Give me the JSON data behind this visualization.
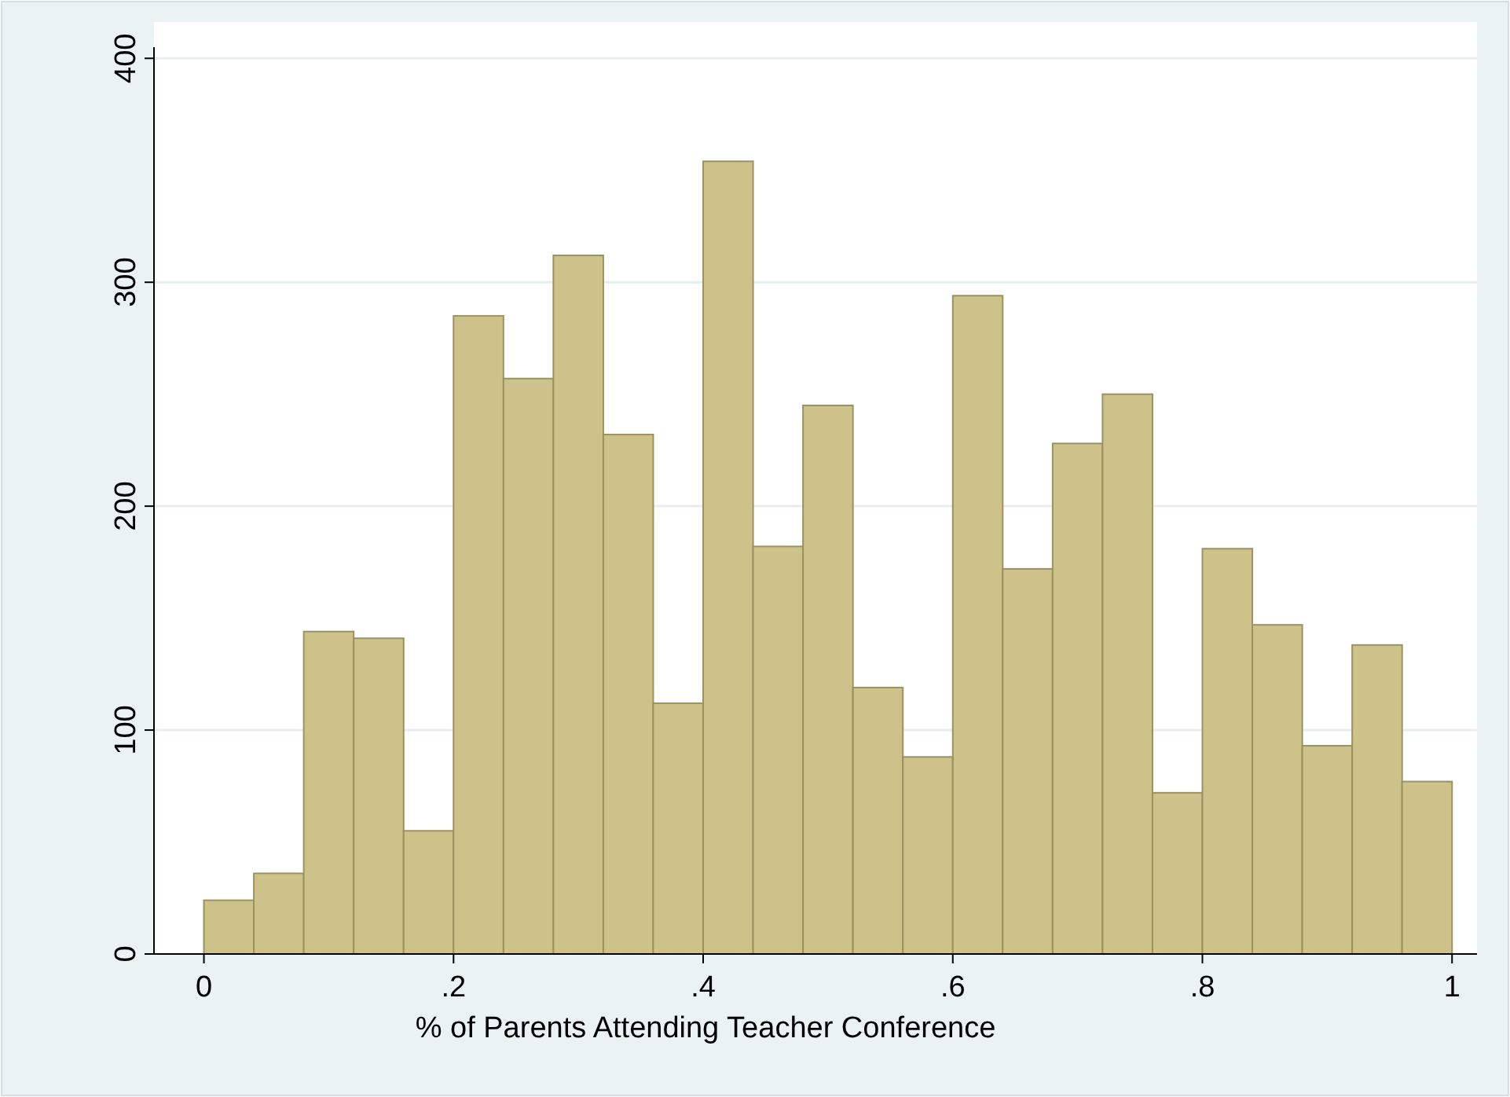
{
  "chart_data": {
    "type": "histogram",
    "xlabel": "% of Parents Attending Teacher Conference",
    "bins": [
      0,
      0.04,
      0.08,
      0.12,
      0.16,
      0.2,
      0.24,
      0.28,
      0.32,
      0.36,
      0.4,
      0.44,
      0.48,
      0.52,
      0.56,
      0.6,
      0.64,
      0.68,
      0.72,
      0.76,
      0.8,
      0.84,
      0.88,
      0.92,
      0.96,
      1
    ],
    "values": [
      24,
      36,
      144,
      141,
      55,
      285,
      257,
      312,
      232,
      112,
      354,
      182,
      245,
      119,
      88,
      294,
      172,
      228,
      250,
      72,
      181,
      147,
      93,
      138,
      77
    ],
    "color": "#cdc38a",
    "xlim": [
      -0.04,
      1.02
    ],
    "xticks": [
      0,
      {
        "value": 0.2,
        "label": ".2"
      },
      {
        "value": 0.4,
        "label": ".4"
      },
      {
        "value": 0.6,
        "label": ".6"
      },
      {
        "value": 0.8,
        "label": ".8"
      },
      1
    ],
    "ylim": [
      0,
      405
    ],
    "yticks": [
      0,
      100,
      200,
      300,
      400
    ],
    "grid": "y"
  }
}
